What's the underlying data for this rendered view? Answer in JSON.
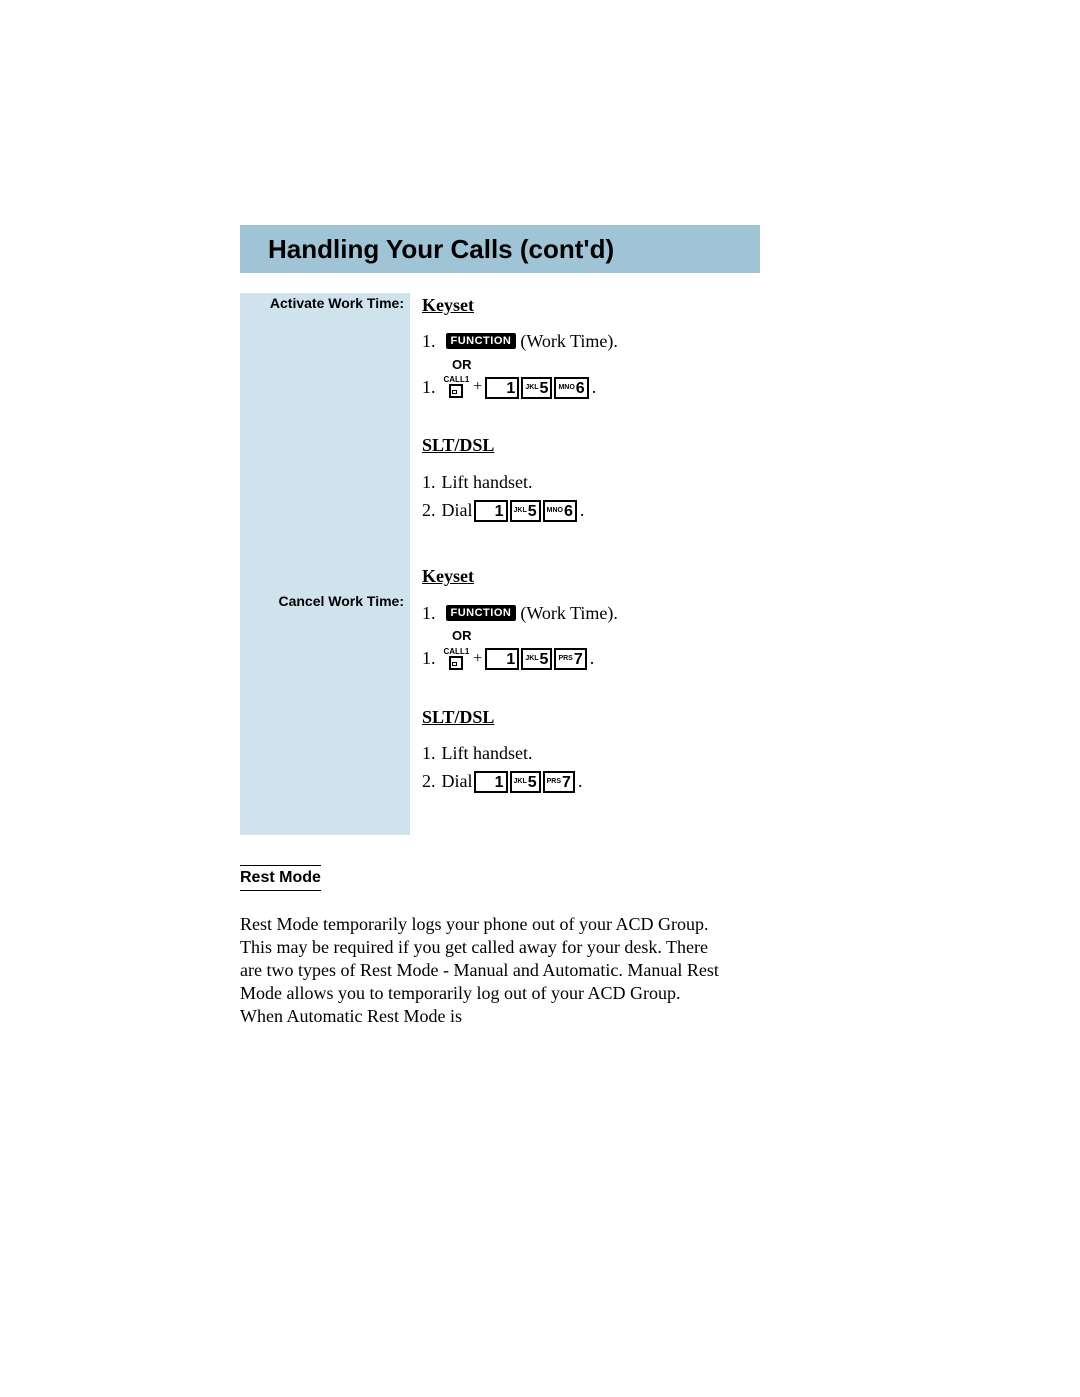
{
  "colors": {
    "title_bar_bg": "#9fc4d6",
    "left_col_bg": "#cfe3ed",
    "page_bg": "#ffffff",
    "text": "#000000"
  },
  "title": "Handling Your Calls (cont'd)",
  "left_labels": {
    "activate": "Activate Work Time:",
    "cancel": "Cancel Work Time:"
  },
  "headings": {
    "keyset": "Keyset",
    "sltdsl": "SLT/DSL",
    "rest_mode": "Rest Mode"
  },
  "buttons": {
    "function": "FUNCTION",
    "call1": "CALL1"
  },
  "text": {
    "work_time_suffix": " (Work Time).",
    "or": "OR",
    "plus": "+",
    "lift_handset": "Lift handset.",
    "dial": "Dial ",
    "period": "."
  },
  "steps": {
    "n1": "1.",
    "n2": "2."
  },
  "keys": {
    "k1": {
      "letters": "",
      "digit": "1",
      "wide": true
    },
    "k5": {
      "letters": "JKL",
      "digit": "5"
    },
    "k6": {
      "letters": "MNO",
      "digit": "6"
    },
    "k7": {
      "letters": "PRS",
      "digit": "7"
    }
  },
  "sequences": {
    "activate": [
      "k1",
      "k5",
      "k6"
    ],
    "cancel": [
      "k1",
      "k5",
      "k7"
    ]
  },
  "rest_mode_body": "Rest Mode temporarily logs your phone out of your ACD Group.  This may be required if you get called away for your desk.  There are two types of Rest Mode - Manual and Automatic.  Manual Rest Mode allows you to temporarily log out of your ACD Group.  When Automatic Rest Mode is"
}
